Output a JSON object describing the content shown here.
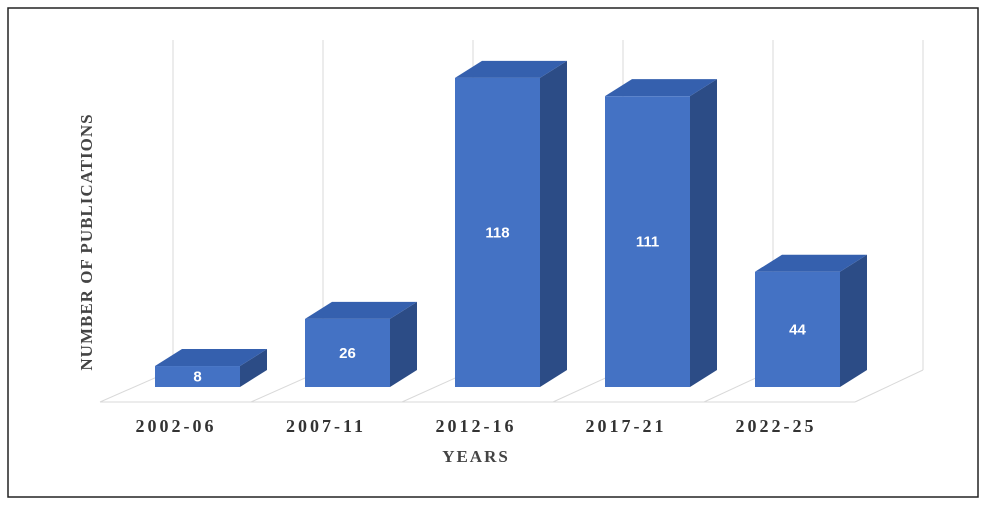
{
  "chart_data": {
    "type": "bar3d",
    "x_label": "YEARS",
    "y_label": "NUMBER OF PUBLICATIONS",
    "categories": [
      "2002-06",
      "2007-11",
      "2012-16",
      "2017-21",
      "2022-25"
    ],
    "values": [
      8,
      26,
      118,
      111,
      44
    ],
    "color": "#4472c4"
  }
}
